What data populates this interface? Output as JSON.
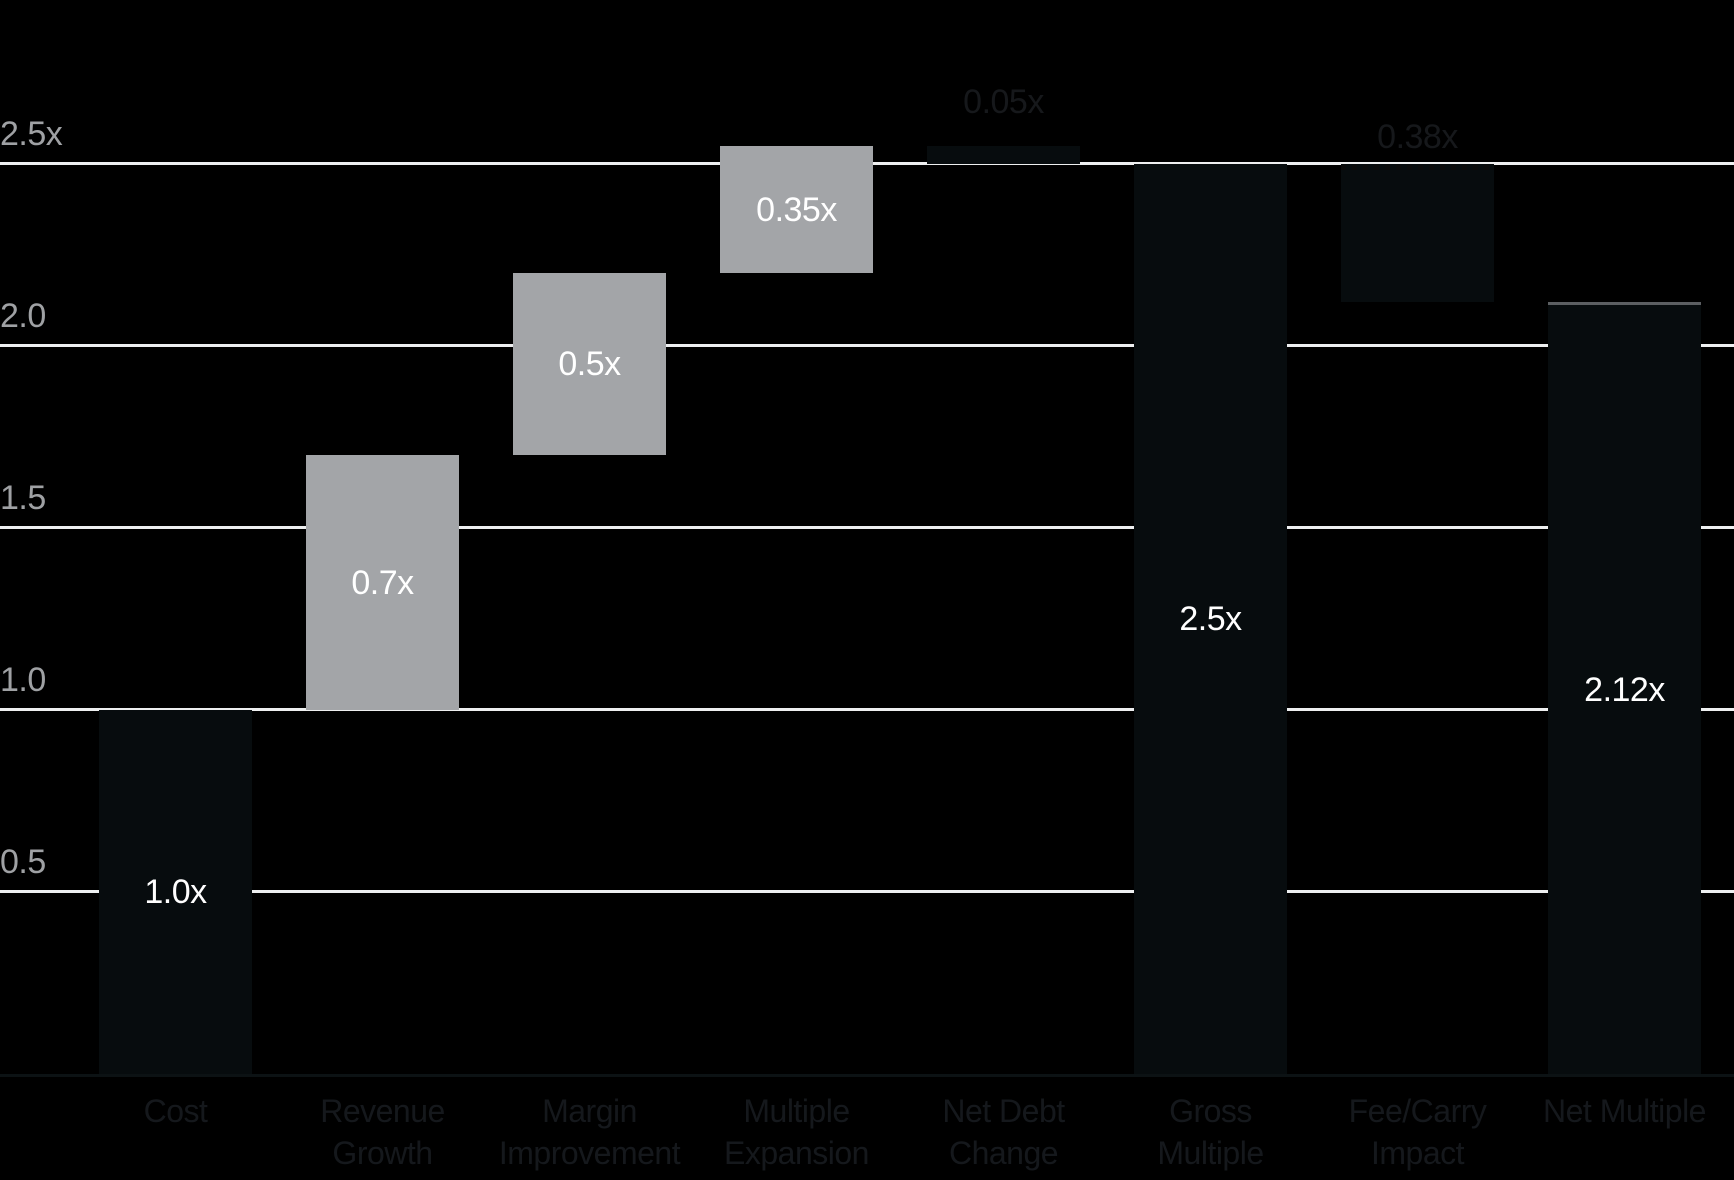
{
  "chart_data": {
    "type": "bar",
    "subtype": "waterfall",
    "title": "",
    "xlabel": "",
    "ylabel": "",
    "ylim": [
      0,
      2.95
    ],
    "grid": "horizontal",
    "legend": null,
    "yticks": [
      {
        "label": "2.5x",
        "value": 2.5
      },
      {
        "label": "2.0",
        "value": 2.0
      },
      {
        "label": "1.5",
        "value": 1.5
      },
      {
        "label": "1.0",
        "value": 1.0
      },
      {
        "label": "0.5",
        "value": 0.5
      }
    ],
    "categories": [
      "Cost",
      "Revenue Growth",
      "Margin Improvement",
      "Multiple Expansion",
      "Net Debt Change",
      "Gross Multiple",
      "Fee/Carry Impact",
      "Net Multiple"
    ],
    "bars": [
      {
        "category": "Cost",
        "label_lines": [
          "Cost"
        ],
        "label": "1.0x",
        "start": 0,
        "end": 1.0,
        "delta": 1.0,
        "role": "total",
        "color_key": "dark",
        "label_placement": "inside",
        "label_color": "light",
        "top_edge": "none"
      },
      {
        "category": "Revenue Growth",
        "label_lines": [
          "Revenue",
          "Growth"
        ],
        "label": "0.7x",
        "start": 1.0,
        "end": 1.7,
        "delta": 0.7,
        "role": "increase",
        "color_key": "gray",
        "label_placement": "inside",
        "label_color": "light",
        "top_edge": "none"
      },
      {
        "category": "Margin Improvement",
        "label_lines": [
          "Margin",
          "Improvement"
        ],
        "label": "0.5x",
        "start": 1.7,
        "end": 2.2,
        "delta": 0.5,
        "role": "increase",
        "color_key": "gray",
        "label_placement": "inside",
        "label_color": "light",
        "top_edge": "none"
      },
      {
        "category": "Multiple Expansion",
        "label_lines": [
          "Multiple",
          "Expansion"
        ],
        "label": "0.35x",
        "start": 2.2,
        "end": 2.55,
        "delta": 0.35,
        "role": "increase",
        "color_key": "gray",
        "label_placement": "inside",
        "label_color": "light",
        "top_edge": "none"
      },
      {
        "category": "Net Debt Change",
        "label_lines": [
          "Net Debt",
          "Change"
        ],
        "label": "0.05x",
        "start": 2.55,
        "end": 2.5,
        "delta": -0.05,
        "role": "decrease",
        "color_key": "dark",
        "label_placement": "above",
        "label_color": "dark",
        "top_edge": "none"
      },
      {
        "category": "Gross Multiple",
        "label_lines": [
          "Gross",
          "Multiple"
        ],
        "label": "2.5x",
        "start": 0,
        "end": 2.5,
        "delta": 2.5,
        "role": "total",
        "color_key": "dark",
        "label_placement": "inside",
        "label_color": "light",
        "top_edge": "none"
      },
      {
        "category": "Fee/Carry Impact",
        "label_lines": [
          "Fee/Carry",
          "Impact"
        ],
        "label": "0.38x",
        "start": 2.5,
        "end": 2.12,
        "delta": -0.38,
        "role": "decrease",
        "color_key": "dark",
        "label_placement": "above",
        "label_color": "dark",
        "top_edge": "dashed"
      },
      {
        "category": "Net Multiple",
        "label_lines": [
          "Net Multiple"
        ],
        "label": "2.12x",
        "start": 0,
        "end": 2.12,
        "delta": 2.12,
        "role": "total",
        "color_key": "dark",
        "label_placement": "inside",
        "label_color": "light",
        "top_edge": "light"
      }
    ],
    "colors": {
      "background": "#000000",
      "bar_gray": "#a3a5a8",
      "bar_dark": "#070c0e",
      "gridline": "#eeeff0",
      "baseline": "#0c1214",
      "axis_label": "#9fa1a4",
      "value_label_light": "#ffffff",
      "value_label_dark": "#16181b",
      "category_label": "#15181c",
      "dashed_edge": "#0b0b0b",
      "light_edge": "#5c5f62"
    }
  }
}
